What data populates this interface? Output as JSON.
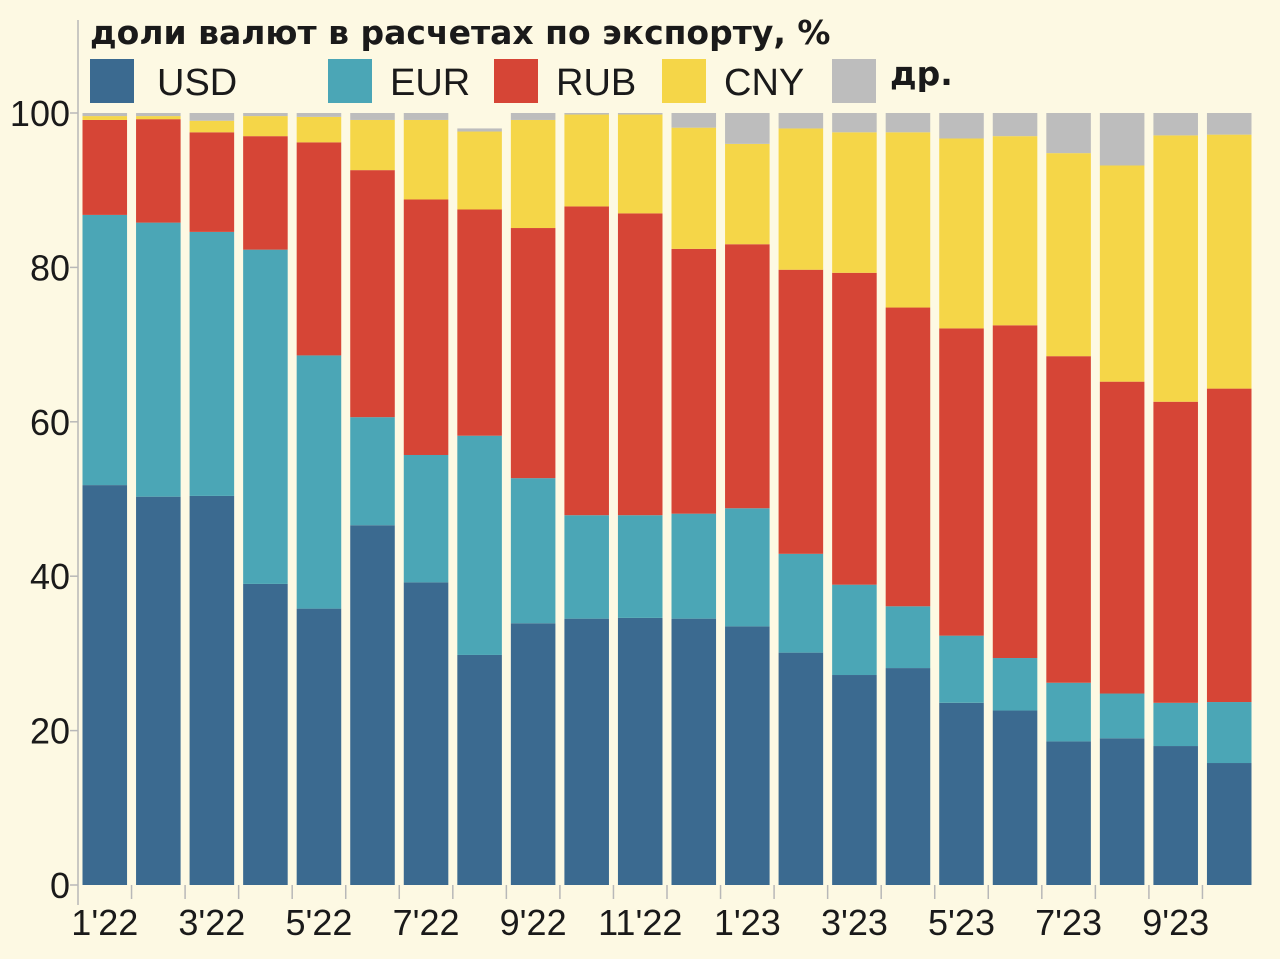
{
  "chart_data": {
    "type": "bar",
    "stacked": true,
    "title": "доли валют в расчетах по экспорту, %",
    "categories": [
      "1'22",
      "2'22",
      "3'22",
      "4'22",
      "5'22",
      "6'22",
      "7'22",
      "8'22",
      "9'22",
      "10'22",
      "11'22",
      "12'22",
      "1'23",
      "2'23",
      "3'23",
      "4'23",
      "5'23",
      "6'23",
      "7'23",
      "8'23",
      "9'23",
      "10'23"
    ],
    "x_tick_labels": [
      "1'22",
      "3'22",
      "5'22",
      "7'22",
      "9'22",
      "11'22",
      "1'23",
      "3'23",
      "5'23",
      "7'23",
      "9'23"
    ],
    "ylim": [
      0,
      100
    ],
    "y_ticks": [
      0,
      20,
      40,
      60,
      80,
      100
    ],
    "legend_position": "top",
    "grid": false,
    "series": [
      {
        "name": "USD",
        "color": "#3b6a90",
        "values": [
          51.8,
          50.3,
          50.4,
          39.0,
          35.8,
          46.6,
          39.2,
          29.8,
          33.9,
          34.5,
          34.6,
          34.5,
          33.5,
          30.1,
          27.2,
          28.1,
          23.6,
          22.6,
          18.6,
          19.0,
          18.0,
          15.8
        ]
      },
      {
        "name": "EUR",
        "color": "#4ba6b6",
        "values": [
          35.0,
          35.5,
          34.2,
          43.3,
          32.8,
          14.0,
          16.5,
          28.4,
          18.8,
          13.4,
          13.3,
          13.6,
          15.3,
          12.8,
          11.7,
          8.0,
          8.7,
          6.8,
          7.6,
          5.8,
          5.6,
          7.9
        ]
      },
      {
        "name": "RUB",
        "color": "#d64536",
        "values": [
          12.3,
          13.4,
          12.9,
          14.7,
          27.6,
          32.0,
          33.1,
          29.3,
          32.4,
          40.0,
          39.1,
          34.3,
          34.2,
          36.8,
          40.4,
          38.7,
          39.8,
          43.1,
          42.3,
          40.4,
          39.0,
          40.6
        ]
      },
      {
        "name": "CNY",
        "color": "#f5d648",
        "values": [
          0.5,
          0.4,
          1.5,
          2.6,
          3.3,
          6.5,
          10.3,
          10.1,
          14.0,
          11.9,
          12.8,
          15.7,
          13.0,
          18.3,
          18.2,
          22.7,
          24.6,
          24.5,
          26.3,
          28.0,
          34.5,
          32.9
        ]
      },
      {
        "name": "др.",
        "color": "#bdbdbd",
        "values": [
          0.4,
          0.4,
          1.0,
          0.4,
          0.5,
          0.9,
          0.9,
          0.4,
          0.9,
          0.2,
          0.2,
          1.9,
          4.0,
          2.0,
          2.5,
          2.5,
          3.3,
          3.0,
          5.2,
          6.8,
          2.9,
          2.8
        ]
      }
    ]
  }
}
